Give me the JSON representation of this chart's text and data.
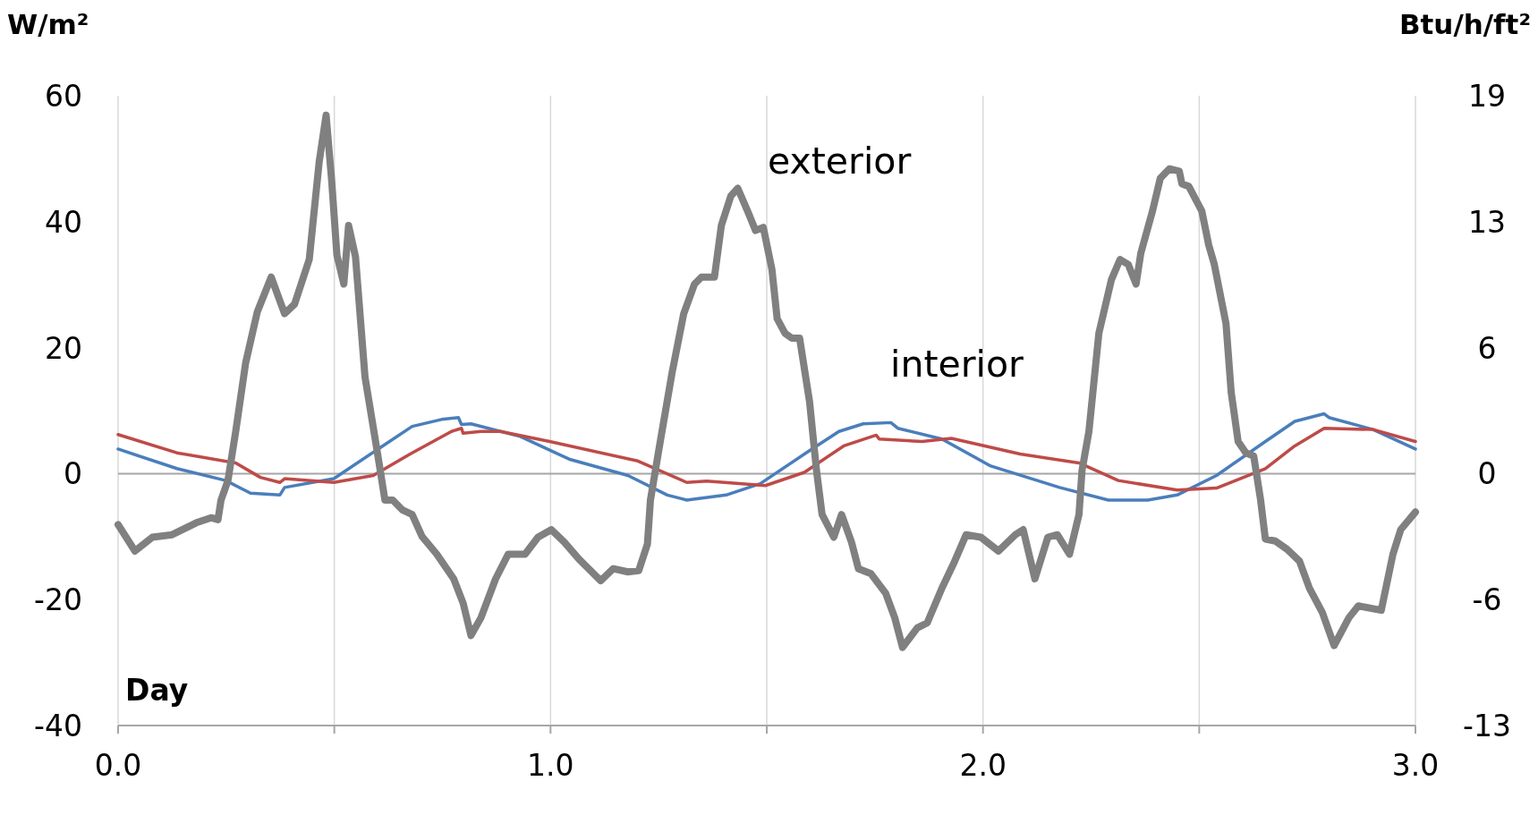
{
  "chart_data": {
    "type": "line",
    "ylabel": "W/m²",
    "y2label": "Btu/h/ft²",
    "xlabel": "Day",
    "xlim": [
      0,
      3
    ],
    "xticks": [
      {
        "value": 0,
        "label": "0.0"
      },
      {
        "value": 0.5,
        "label": null
      },
      {
        "value": 1,
        "label": "1.0"
      },
      {
        "value": 1.5,
        "label": null
      },
      {
        "value": 2,
        "label": "2.0"
      },
      {
        "value": 2.5,
        "label": null
      },
      {
        "value": 3,
        "label": "3.0"
      }
    ],
    "ylim": [
      -40,
      60
    ],
    "yticks": [
      -40,
      -20,
      0,
      20,
      40,
      60
    ],
    "y2lim": [
      -12.68,
      19.02
    ],
    "y2ticks": [
      {
        "value": -12.68,
        "label": "-13"
      },
      {
        "value": -6.34,
        "label": "-6"
      },
      0,
      {
        "value": 6.34,
        "label": "6"
      },
      {
        "value": 12.68,
        "label": "13"
      },
      {
        "value": 19.02,
        "label": "19"
      }
    ],
    "grid": "x",
    "ref_lines": [
      {
        "axis": "y",
        "value": 0,
        "color": "#a6a6a6"
      }
    ],
    "annotations": [
      "exterior",
      "interior"
    ],
    "series": [
      {
        "color": "#4a7ebb",
        "x": [
          0,
          0.136,
          0.249,
          0.306,
          0.374,
          0.385,
          0.499,
          0.612,
          0.68,
          0.748,
          0.787,
          0.794,
          0.816,
          0.93,
          1.043,
          1.179,
          1.27,
          1.315,
          1.406,
          1.485,
          1.587,
          1.667,
          1.723,
          1.787,
          1.803,
          1.905,
          2.018,
          2.177,
          2.29,
          2.381,
          2.449,
          2.54,
          2.653,
          2.721,
          2.789,
          2.8,
          2.902,
          3
        ],
        "values": [
          3.9,
          0.8,
          -1.1,
          -3.1,
          -3.4,
          -2.2,
          -0.8,
          4.4,
          7.5,
          8.6,
          8.9,
          7.8,
          7.9,
          5.9,
          2.3,
          -0.3,
          -3.4,
          -4.2,
          -3.4,
          -1.6,
          3.1,
          6.7,
          7.9,
          8.1,
          7.2,
          5.5,
          1.2,
          -2.2,
          -4.2,
          -4.2,
          -3.4,
          -0.3,
          5.1,
          8.3,
          9.5,
          8.9,
          7,
          3.9
        ]
      },
      {
        "color": "#be4b48",
        "x": [
          0,
          0.136,
          0.272,
          0.329,
          0.374,
          0.385,
          0.499,
          0.59,
          0.68,
          0.771,
          0.794,
          0.798,
          0.839,
          0.884,
          0.998,
          1.202,
          1.315,
          1.361,
          1.497,
          1.587,
          1.678,
          1.753,
          1.76,
          1.859,
          1.927,
          2.086,
          2.222,
          2.313,
          2.449,
          2.54,
          2.653,
          2.721,
          2.789,
          2.902,
          3
        ],
        "values": [
          6.2,
          3.3,
          1.7,
          -0.6,
          -1.4,
          -0.8,
          -1.4,
          -0.3,
          3.3,
          6.7,
          7.2,
          6.4,
          6.7,
          6.7,
          5.1,
          2,
          -1.4,
          -1.2,
          -1.9,
          0.2,
          4.4,
          6.1,
          5.5,
          5.1,
          5.6,
          3.1,
          1.7,
          -1.1,
          -2.6,
          -2.3,
          0.8,
          4.4,
          7.2,
          7,
          5.1
        ]
      },
      {
        "color": "#808080",
        "x": [
          0,
          0.039,
          0.079,
          0.125,
          0.181,
          0.215,
          0.231,
          0.238,
          0.254,
          0.272,
          0.295,
          0.322,
          0.354,
          0.385,
          0.408,
          0.442,
          0.465,
          0.481,
          0.494,
          0.506,
          0.522,
          0.533,
          0.549,
          0.571,
          0.599,
          0.617,
          0.635,
          0.658,
          0.68,
          0.703,
          0.737,
          0.776,
          0.798,
          0.816,
          0.839,
          0.873,
          0.902,
          0.941,
          0.971,
          1.002,
          1.032,
          1.066,
          1.116,
          1.145,
          1.179,
          1.204,
          1.224,
          1.231,
          1.252,
          1.281,
          1.308,
          1.333,
          1.349,
          1.379,
          1.395,
          1.417,
          1.433,
          1.458,
          1.474,
          1.492,
          1.512,
          1.524,
          1.542,
          1.558,
          1.576,
          1.599,
          1.615,
          1.628,
          1.655,
          1.673,
          1.696,
          1.712,
          1.741,
          1.775,
          1.796,
          1.814,
          1.848,
          1.871,
          1.905,
          1.932,
          1.961,
          1.995,
          2.036,
          2.075,
          2.093,
          2.12,
          2.15,
          2.172,
          2.2,
          2.222,
          2.229,
          2.245,
          2.268,
          2.297,
          2.317,
          2.336,
          2.354,
          2.365,
          2.392,
          2.41,
          2.431,
          2.454,
          2.46,
          2.476,
          2.506,
          2.522,
          2.535,
          2.562,
          2.574,
          2.59,
          2.608,
          2.626,
          2.642,
          2.653,
          2.676,
          2.703,
          2.732,
          2.755,
          2.785,
          2.812,
          2.846,
          2.868,
          2.921,
          2.948,
          2.966,
          3
        ],
        "values": [
          -8.1,
          -12.3,
          -10.1,
          -9.7,
          -7.8,
          -7,
          -7.3,
          -4.2,
          -1.1,
          6.7,
          17.6,
          25.7,
          31.2,
          25.4,
          26.9,
          34,
          49.5,
          56.9,
          46.4,
          34.7,
          30.1,
          39.4,
          34.4,
          15.3,
          3.6,
          -4.2,
          -4.2,
          -5.8,
          -6.5,
          -10,
          -12.8,
          -16.7,
          -20.6,
          -25.7,
          -22.9,
          -16.7,
          -12.8,
          -12.8,
          -10.1,
          -8.9,
          -10.9,
          -13.6,
          -17,
          -15.1,
          -15.6,
          -15.4,
          -11.2,
          -4.2,
          4.4,
          16,
          25.4,
          30.1,
          31.2,
          31.2,
          39.4,
          44.1,
          45.3,
          41.3,
          38.6,
          39.1,
          32.4,
          24.6,
          22.3,
          21.5,
          21.5,
          11.4,
          0.5,
          -6.5,
          -10.1,
          -6.5,
          -10.9,
          -15.1,
          -15.9,
          -19,
          -22.9,
          -27.6,
          -24.5,
          -23.7,
          -18.2,
          -14.3,
          -9.7,
          -10.1,
          -12.3,
          -9.7,
          -8.9,
          -16.7,
          -10.1,
          -9.7,
          -12.8,
          -6.5,
          0.5,
          6.7,
          22.3,
          30.8,
          34,
          33.2,
          30.1,
          35,
          41.7,
          46.9,
          48.4,
          48,
          46,
          45.6,
          41.7,
          36.3,
          33.2,
          23.8,
          12.9,
          5.1,
          3.3,
          2.8,
          -4.2,
          -10.4,
          -10.7,
          -12,
          -13.9,
          -18.2,
          -22.1,
          -27.3,
          -22.9,
          -21,
          -21.7,
          -12.8,
          -8.9,
          -6.1
        ]
      }
    ]
  }
}
